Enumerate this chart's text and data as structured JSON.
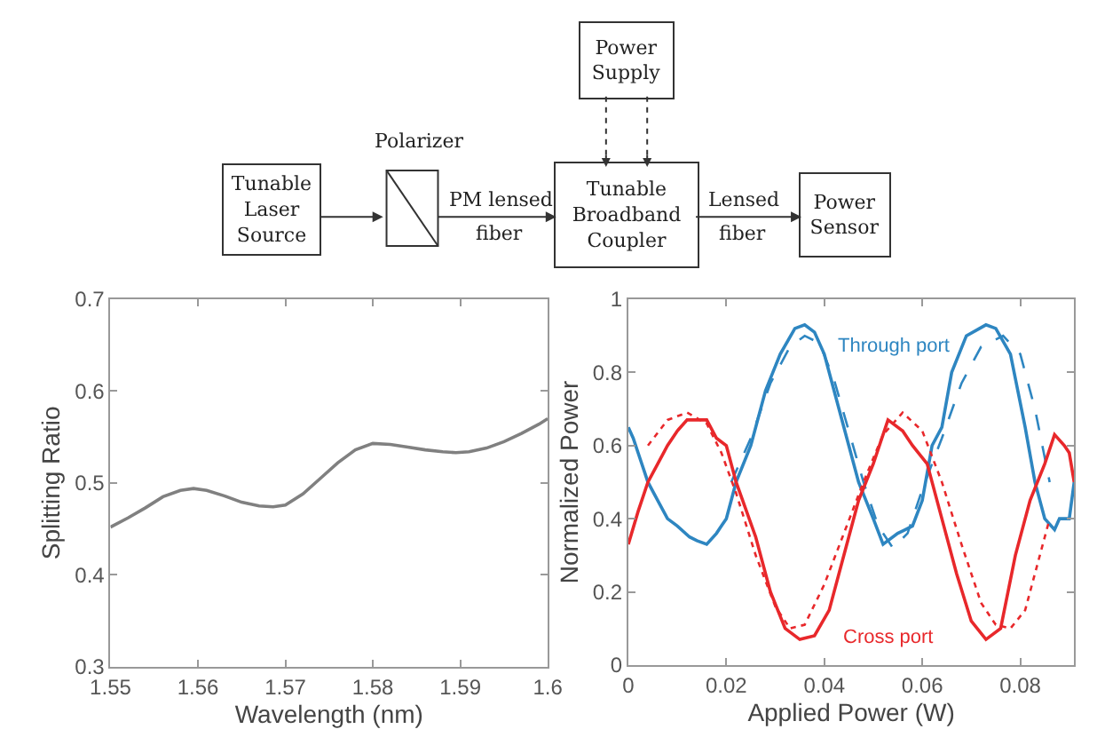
{
  "chart_data": [
    {
      "type": "other",
      "annotations": [
        "Tunable\nLaser\nSource",
        "Polarizer",
        "PM lensed\nfiber",
        "Tunable\nBroadband\nCoupler",
        "Lensed\nfiber",
        "Power\nSensor",
        "Power\nSupply"
      ]
    },
    {
      "type": "line",
      "xlabel": "Wavelength (nm)",
      "ylabel": "Splitting Ratio",
      "xlim": [
        1.55,
        1.6
      ],
      "ylim": [
        0.3,
        0.7
      ],
      "xticks": [
        1.55,
        1.56,
        1.57,
        1.58,
        1.59,
        1.6
      ],
      "yticks": [
        0.3,
        0.4,
        0.5,
        0.6,
        0.7
      ],
      "series": [
        {
          "color": "#808080",
          "line_style": "solid",
          "x": [
            1.55,
            1.552,
            1.554,
            1.556,
            1.558,
            1.5595,
            1.561,
            1.563,
            1.565,
            1.567,
            1.5686,
            1.57,
            1.572,
            1.574,
            1.576,
            1.578,
            1.58,
            1.582,
            1.584,
            1.586,
            1.588,
            1.5895,
            1.591,
            1.593,
            1.595,
            1.597,
            1.599,
            1.6
          ],
          "values": [
            0.452,
            0.462,
            0.473,
            0.485,
            0.492,
            0.494,
            0.492,
            0.486,
            0.479,
            0.475,
            0.474,
            0.476,
            0.488,
            0.505,
            0.522,
            0.536,
            0.543,
            0.542,
            0.539,
            0.536,
            0.534,
            0.533,
            0.534,
            0.538,
            0.545,
            0.554,
            0.564,
            0.57
          ]
        }
      ]
    },
    {
      "type": "line",
      "xlabel": "Applied Power (W)",
      "ylabel": "Normalized Power",
      "xlim": [
        0,
        0.091
      ],
      "ylim": [
        0,
        1
      ],
      "xticks": [
        0,
        0.02,
        0.04,
        0.06,
        0.08
      ],
      "yticks": [
        0,
        0.2,
        0.4,
        0.6,
        0.8,
        1
      ],
      "series": [
        {
          "name": "Through port",
          "color": "#2e86c1",
          "line_style": "solid",
          "x": [
            0,
            0.001,
            0.002,
            0.004,
            0.006,
            0.008,
            0.01,
            0.0125,
            0.014,
            0.016,
            0.018,
            0.019,
            0.02,
            0.022,
            0.025,
            0.028,
            0.031,
            0.034,
            0.036,
            0.038,
            0.04,
            0.042,
            0.045,
            0.047,
            0.05,
            0.052,
            0.055,
            0.058,
            0.06,
            0.062,
            0.064,
            0.066,
            0.069,
            0.073,
            0.075,
            0.078,
            0.081,
            0.083,
            0.085,
            0.087,
            0.088,
            0.09,
            0.091
          ],
          "values": [
            0.65,
            0.62,
            0.58,
            0.5,
            0.45,
            0.4,
            0.38,
            0.35,
            0.34,
            0.33,
            0.36,
            0.38,
            0.4,
            0.5,
            0.6,
            0.75,
            0.85,
            0.92,
            0.93,
            0.91,
            0.85,
            0.75,
            0.6,
            0.5,
            0.4,
            0.33,
            0.36,
            0.38,
            0.45,
            0.6,
            0.65,
            0.8,
            0.9,
            0.93,
            0.92,
            0.85,
            0.65,
            0.5,
            0.4,
            0.37,
            0.4,
            0.4,
            0.5
          ]
        },
        {
          "color": "#2e86c1",
          "line_style": "dashed",
          "x": [
            0.021,
            0.025,
            0.029,
            0.033,
            0.036,
            0.039,
            0.042,
            0.045,
            0.048,
            0.051,
            0.054,
            0.057,
            0.06,
            0.064,
            0.068,
            0.072,
            0.0765,
            0.08,
            0.083,
            0.086
          ],
          "values": [
            0.5,
            0.62,
            0.77,
            0.87,
            0.9,
            0.88,
            0.78,
            0.64,
            0.5,
            0.38,
            0.32,
            0.36,
            0.48,
            0.62,
            0.77,
            0.87,
            0.9,
            0.85,
            0.7,
            0.5
          ]
        },
        {
          "name": "Cross port",
          "color": "#e8282b",
          "line_style": "solid",
          "x": [
            0,
            0.002,
            0.004,
            0.006,
            0.008,
            0.01,
            0.012,
            0.016,
            0.018,
            0.02,
            0.022,
            0.026,
            0.029,
            0.032,
            0.035,
            0.038,
            0.041,
            0.044,
            0.047,
            0.05,
            0.053,
            0.056,
            0.058,
            0.061,
            0.064,
            0.067,
            0.07,
            0.073,
            0.076,
            0.079,
            0.082,
            0.085,
            0.087,
            0.089,
            0.09,
            0.091
          ],
          "values": [
            0.33,
            0.42,
            0.5,
            0.55,
            0.6,
            0.64,
            0.67,
            0.67,
            0.62,
            0.6,
            0.5,
            0.35,
            0.2,
            0.1,
            0.07,
            0.08,
            0.15,
            0.3,
            0.45,
            0.55,
            0.67,
            0.64,
            0.6,
            0.55,
            0.4,
            0.25,
            0.12,
            0.07,
            0.1,
            0.3,
            0.45,
            0.55,
            0.63,
            0.6,
            0.58,
            0.5
          ]
        },
        {
          "color": "#e8282b",
          "line_style": "dotted",
          "x": [
            0.004,
            0.008,
            0.012,
            0.016,
            0.019,
            0.022,
            0.026,
            0.03,
            0.033,
            0.036,
            0.04,
            0.044,
            0.048,
            0.052,
            0.056,
            0.06,
            0.064,
            0.068,
            0.072,
            0.075,
            0.078,
            0.081,
            0.084,
            0.086
          ],
          "values": [
            0.6,
            0.67,
            0.69,
            0.66,
            0.58,
            0.47,
            0.3,
            0.16,
            0.1,
            0.11,
            0.22,
            0.36,
            0.5,
            0.63,
            0.69,
            0.64,
            0.5,
            0.33,
            0.17,
            0.11,
            0.1,
            0.15,
            0.3,
            0.4
          ]
        }
      ]
    }
  ]
}
